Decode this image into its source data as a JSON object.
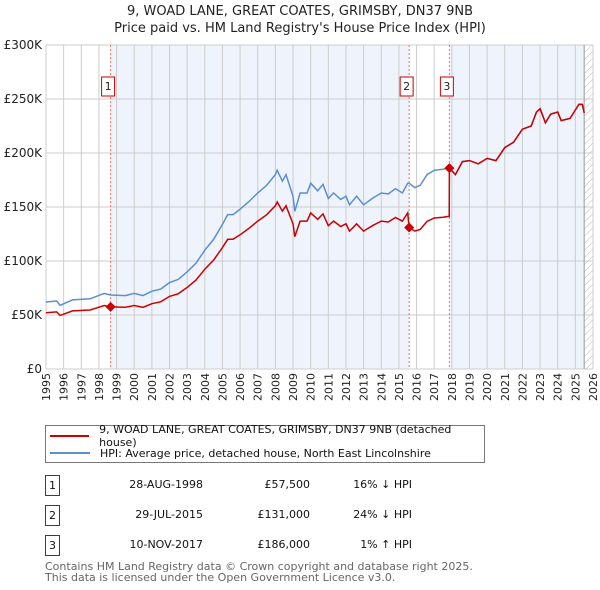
{
  "chart_data": {
    "type": "line",
    "title": "9, WOAD LANE, GREAT COATES, GRIMSBY, DN37 9NB",
    "subtitle": "Price paid vs. HM Land Registry's House Price Index (HPI)",
    "xlim": [
      1995,
      2026
    ],
    "ylim": [
      0,
      300000
    ],
    "x_ticks": [
      "1995",
      "1996",
      "1997",
      "1998",
      "1999",
      "2000",
      "2001",
      "2002",
      "2003",
      "2004",
      "2005",
      "2006",
      "2007",
      "2008",
      "2009",
      "2010",
      "2011",
      "2012",
      "2013",
      "2014",
      "2015",
      "2016",
      "2017",
      "2018",
      "2019",
      "2020",
      "2021",
      "2022",
      "2023",
      "2024",
      "2025",
      "2026"
    ],
    "y_ticks": [
      {
        "v": 0,
        "label": "£0"
      },
      {
        "v": 50000,
        "label": "£50K"
      },
      {
        "v": 100000,
        "label": "£100K"
      },
      {
        "v": 150000,
        "label": "£150K"
      },
      {
        "v": 200000,
        "label": "£200K"
      },
      {
        "v": 250000,
        "label": "£250K"
      },
      {
        "v": 300000,
        "label": "£300K"
      }
    ],
    "grid": true,
    "x": [
      1995,
      1995.6,
      1995.8,
      1996.5,
      1997.5,
      1998.3,
      1998.66,
      1999.5,
      2000,
      2000.5,
      2001,
      2001.5,
      2002,
      2002.5,
      2003,
      2003.5,
      2004,
      2004.5,
      2005,
      2005.3,
      2005.6,
      2006,
      2006.5,
      2007,
      2007.5,
      2008,
      2008.1,
      2008.4,
      2008.6,
      2009,
      2009.1,
      2009.4,
      2009.8,
      2010,
      2010.4,
      2010.7,
      2011,
      2011.3,
      2011.7,
      2012,
      2012.2,
      2012.6,
      2013,
      2013.5,
      2014,
      2014.4,
      2014.8,
      2015.2,
      2015.5,
      2015.58,
      2015.9,
      2016.2,
      2016.6,
      2017,
      2017.5,
      2017.85,
      2017.86,
      2018.2,
      2018.6,
      2019,
      2019.5,
      2020,
      2020.5,
      2021,
      2021.5,
      2022,
      2022.5,
      2022.8,
      2023,
      2023.3,
      2023.6,
      2024,
      2024.2,
      2024.7,
      2025.2,
      2025.4,
      2025.5
    ],
    "series": [
      {
        "name": "9, WOAD LANE, GREAT COATES, GRIMSBY, DN37 9NB (detached house)",
        "color": "#cc0000",
        "unit": "thousand GBP",
        "values": [
          52.1,
          52.9,
          49.6,
          53.8,
          54.6,
          58.8,
          57.5,
          57.1,
          58.8,
          57.1,
          60.5,
          62.2,
          67.2,
          69.7,
          75.6,
          82.3,
          92.4,
          100.8,
          112.6,
          120.1,
          120.1,
          124.3,
          130.2,
          136.9,
          142.8,
          151.2,
          154.6,
          146.2,
          151.2,
          134.4,
          122.6,
          136.9,
          136.9,
          144.5,
          138.6,
          143.6,
          132.7,
          136.9,
          131.9,
          134.4,
          127.7,
          134.4,
          127.7,
          132.7,
          136.9,
          136.1,
          140.3,
          136.9,
          144.5,
          131,
          127.7,
          129.2,
          136.8,
          139.8,
          140.6,
          141.4,
          186,
          180,
          192,
          193,
          190,
          195,
          193,
          205,
          210,
          222,
          225,
          238,
          241,
          228,
          236,
          238,
          230,
          232,
          245,
          245,
          237
        ]
      },
      {
        "name": "HPI: Average price, detached house, North East Lincolnshire",
        "color": "#5b8fd0",
        "unit": "thousand GBP",
        "values": [
          62,
          63,
          59,
          64,
          65,
          70,
          68.5,
          68,
          70,
          68,
          72,
          74,
          80,
          83,
          90,
          98,
          110,
          120,
          134,
          143,
          143,
          148,
          155,
          163,
          170,
          180,
          184,
          174,
          180,
          160,
          146,
          163,
          163,
          172,
          165,
          171,
          158,
          163,
          157,
          160,
          152,
          160,
          152,
          158,
          163,
          162,
          167,
          163,
          172,
          172,
          168,
          170,
          180,
          184,
          185,
          186,
          186,
          180,
          192,
          193,
          190,
          195,
          193,
          205,
          210,
          222,
          225,
          238,
          241,
          228,
          236,
          238,
          230,
          232,
          245,
          245,
          237
        ]
      }
    ],
    "sales": [
      {
        "n": "1",
        "date": "28-AUG-1998",
        "t": 1998.66,
        "price": 57500,
        "price_label": "£57,500",
        "delta": "16% ↓ HPI"
      },
      {
        "n": "2",
        "date": "29-JUL-2015",
        "t": 2015.58,
        "price": 131000,
        "price_label": "£131,000",
        "delta": "24% ↓ HPI"
      },
      {
        "n": "3",
        "date": "10-NOV-2017",
        "t": 2017.86,
        "price": 186000,
        "price_label": "£186,000",
        "delta": "1% ↑ HPI"
      }
    ],
    "data_end": 2025.5,
    "legend_position": "below"
  },
  "footer": {
    "line1": "Contains HM Land Registry data © Crown copyright and database right 2025.",
    "line2": "This data is licensed under the Open Government Licence v3.0."
  }
}
